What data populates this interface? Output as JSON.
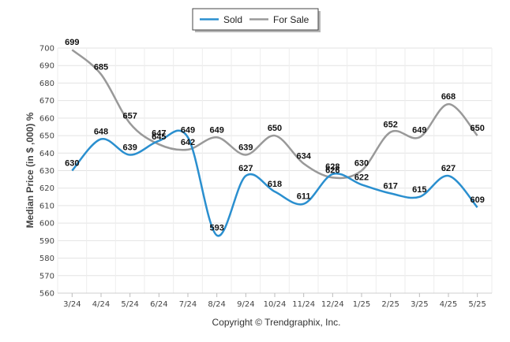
{
  "chart_data": {
    "type": "line",
    "categories": [
      "3/24",
      "4/24",
      "5/24",
      "6/24",
      "7/24",
      "8/24",
      "9/24",
      "10/24",
      "11/24",
      "12/24",
      "1/25",
      "2/25",
      "3/25",
      "4/25",
      "5/25"
    ],
    "series": [
      {
        "name": "Sold",
        "color": "#2a8fcf",
        "values": [
          630,
          648,
          639,
          647,
          649,
          593,
          627,
          618,
          611,
          628,
          622,
          617,
          615,
          627,
          609
        ]
      },
      {
        "name": "For Sale",
        "color": "#999999",
        "values": [
          699,
          685,
          657,
          645,
          642,
          649,
          639,
          650,
          634,
          626,
          630,
          652,
          649,
          668,
          650
        ]
      }
    ],
    "title": "",
    "xlabel": "",
    "ylabel": "Median Price (in $ ,000) %",
    "ylim": [
      560,
      700
    ],
    "yticks": [
      560,
      570,
      580,
      590,
      600,
      610,
      620,
      630,
      640,
      650,
      660,
      670,
      680,
      690,
      700
    ],
    "grid": true,
    "legend": "top-center"
  },
  "copyright": "Copyright © Trendgraphix, Inc."
}
